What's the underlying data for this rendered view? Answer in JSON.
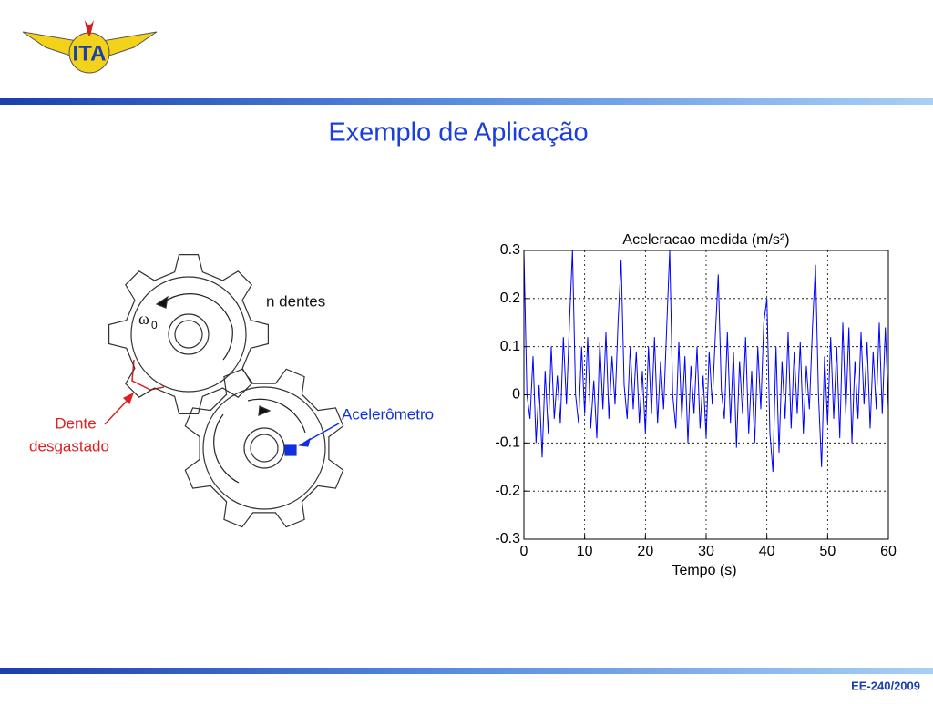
{
  "logo": {
    "text": "ITA"
  },
  "header": {
    "title": "Exemplo de Aplicação"
  },
  "diagram": {
    "teeth_label": "n dentes",
    "omega": "ω",
    "omega_sub": "0",
    "worn_tooth": [
      "Dente",
      "desgastado"
    ],
    "sensor": "Acelerômetro"
  },
  "footer": {
    "text": "EE-240/2009"
  },
  "chart_data": {
    "type": "line",
    "title": "Aceleracao medida (m/s²)",
    "xlabel": "Tempo (s)",
    "x": [
      0,
      0.5,
      1,
      1.5,
      2,
      2.5,
      3,
      3.5,
      4,
      4.5,
      5,
      5.5,
      6,
      6.5,
      7,
      7.5,
      8,
      8.5,
      9,
      9.5,
      10,
      10.5,
      11,
      11.5,
      12,
      12.5,
      13,
      13.5,
      14,
      14.5,
      15,
      15.5,
      16,
      16.5,
      17,
      17.5,
      18,
      18.5,
      19,
      19.5,
      20,
      20.5,
      21,
      21.5,
      22,
      22.5,
      23,
      23.5,
      24,
      24.5,
      25,
      25.5,
      26,
      26.5,
      27,
      27.5,
      28,
      28.5,
      29,
      29.5,
      30,
      30.5,
      31,
      31.5,
      32,
      32.5,
      33,
      33.5,
      34,
      34.5,
      35,
      35.5,
      36,
      36.5,
      37,
      37.5,
      38,
      38.5,
      39,
      39.5,
      40,
      40.5,
      41,
      41.5,
      42,
      42.5,
      43,
      43.5,
      44,
      44.5,
      45,
      45.5,
      46,
      46.5,
      47,
      47.5,
      48,
      48.5,
      49,
      49.5,
      50,
      50.5,
      51,
      51.5,
      52,
      52.5,
      53,
      53.5,
      54,
      54.5,
      55,
      55.5,
      56,
      56.5,
      57,
      57.5,
      58,
      58.5,
      59,
      59.5,
      60
    ],
    "values": [
      0.3,
      0,
      -0.05,
      0.08,
      -0.1,
      0.02,
      -0.13,
      0.05,
      -0.08,
      0.1,
      -0.05,
      0.04,
      -0.06,
      0.12,
      -0.02,
      0.15,
      0.3,
      0,
      -0.06,
      0.1,
      -0.04,
      0.12,
      -0.07,
      0.03,
      -0.09,
      0.11,
      -0.03,
      0.13,
      -0.05,
      0.08,
      -0.02,
      0.15,
      0.28,
      0.02,
      -0.05,
      0.1,
      -0.03,
      0.09,
      -0.06,
      0.05,
      -0.08,
      0.1,
      -0.04,
      0.12,
      -0.06,
      0.07,
      -0.03,
      0.14,
      0.3,
      0,
      -0.07,
      0.11,
      -0.05,
      0.08,
      -0.1,
      0.06,
      -0.04,
      0.1,
      -0.07,
      0.04,
      -0.09,
      0.09,
      -0.02,
      0.12,
      0.25,
      0.01,
      -0.05,
      0.13,
      -0.06,
      0.09,
      -0.11,
      0.07,
      -0.04,
      0.12,
      -0.08,
      0.05,
      -0.1,
      0.1,
      -0.03,
      0.15,
      0.2,
      -0.08,
      -0.16,
      0.1,
      -0.12,
      0.07,
      -0.05,
      0.13,
      -0.07,
      0.09,
      -0.04,
      0.11,
      -0.08,
      0.06,
      -0.03,
      0.14,
      0.27,
      0,
      -0.15,
      0.08,
      -0.06,
      0.12,
      -0.05,
      0.1,
      -0.09,
      0.15,
      -0.04,
      0.14,
      -0.1,
      0.07,
      -0.05,
      0.13,
      -0.02,
      0.11,
      -0.07,
      0.09,
      -0.03,
      0.15,
      -0.04,
      0.14,
      -0.03
    ],
    "color": "#0000ff",
    "xlim": [
      0,
      60
    ],
    "xticks": [
      0,
      10,
      20,
      30,
      40,
      50,
      60
    ],
    "ylim": [
      -0.3,
      0.3
    ],
    "yticks": [
      0.3,
      0.2,
      0.1,
      0,
      -0.1,
      -0.2,
      -0.3
    ],
    "grid": true
  }
}
